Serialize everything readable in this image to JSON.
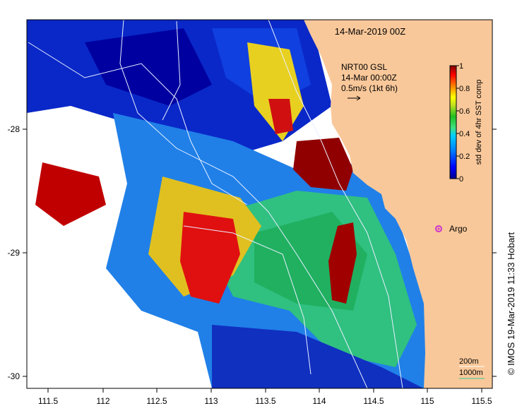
{
  "map": {
    "title": "14-Mar-2019 00Z",
    "product_line1": "NRT00 GSL",
    "product_line2": "14-Mar 00:00Z",
    "product_line3": "0.5m/s (1kt 6h)",
    "copyright": "©  IMOS 19-Mar-2019 11:33 Hobart",
    "argo_label": "Argo",
    "argo_marker_color": "#cc33cc",
    "land_color": "#f9c89a",
    "contour_color": "#e8f0ff",
    "contour_labels": [
      "200m",
      "1000m"
    ],
    "contour_legend_colors": [
      "#ffffff",
      "#33cc99"
    ]
  },
  "axes": {
    "x_ticks": [
      "111.5",
      "112",
      "112.5",
      "113",
      "113.5",
      "114",
      "114.5",
      "115",
      "115.5"
    ],
    "y_ticks": [
      "-28",
      "-29",
      "-30"
    ],
    "x_range": [
      111.3,
      115.65
    ],
    "y_range": [
      -30.08,
      -27.1
    ]
  },
  "colorbar": {
    "label": "std dev of 4hr SST comp",
    "ticks": [
      "1",
      "0.8",
      "0.6",
      "0.4",
      "0.2",
      "0"
    ],
    "range": [
      0,
      1
    ],
    "colors": [
      "#00008f",
      "#0000ff",
      "#0080ff",
      "#00d0ff",
      "#40e080",
      "#20c020",
      "#c0e020",
      "#ffff00",
      "#ff8000",
      "#ff0000",
      "#800000"
    ]
  }
}
